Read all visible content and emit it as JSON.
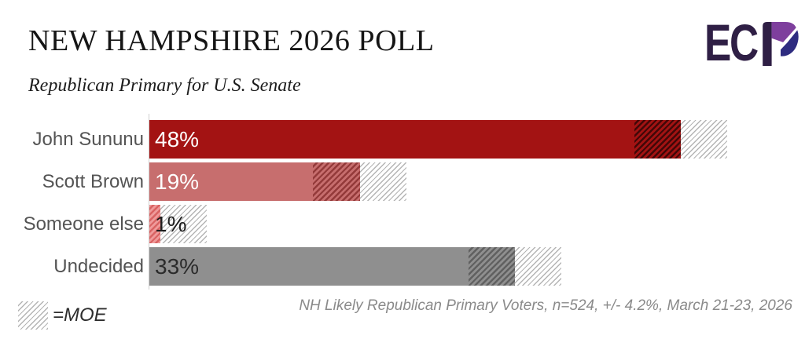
{
  "header": {
    "title": "NEW HAMPSHIRE 2026 POLL",
    "subtitle": "Republican Primary for U.S. Senate"
  },
  "logo": {
    "text": "EC",
    "mark": "p-checkmark",
    "colors": {
      "letters": "#2f1f45",
      "purple": "#7e3f9d",
      "navy": "#2e2c80"
    }
  },
  "chart_data": {
    "type": "bar",
    "orientation": "horizontal",
    "title": "Republican Primary for U.S. Senate",
    "categories": [
      "John Sununu",
      "Scott Brown",
      "Someone else",
      "Undecided"
    ],
    "values": [
      48,
      19,
      1,
      33
    ],
    "value_labels": [
      "48%",
      "19%",
      "1%",
      "33%"
    ],
    "moe_percent": 4.2,
    "bar_colors": [
      "#a31313",
      "#c76e6e",
      "#ef9a9a",
      "#8f8f8f"
    ],
    "moe_hatch_line_colors": [
      "rgba(0,0,0,0.60)",
      "rgba(105,15,15,0.55)",
      "rgba(205,70,70,0.65)",
      "rgba(40,40,40,0.45)"
    ],
    "value_label_colors": [
      "#ffffff",
      "#ffffff",
      "#1d1d1d",
      "#2b2b2b"
    ],
    "xlim": [
      0,
      55
    ],
    "grid": false,
    "axis_line_color": "#cfcfcf",
    "legend_position": "bottom-left",
    "hatch_meaning": "margin of error"
  },
  "legend": {
    "moe_label": "=MOE"
  },
  "footnote": "NH Likely Republican Primary Voters, n=524, +/- 4.2%, March 21-23, 2026"
}
